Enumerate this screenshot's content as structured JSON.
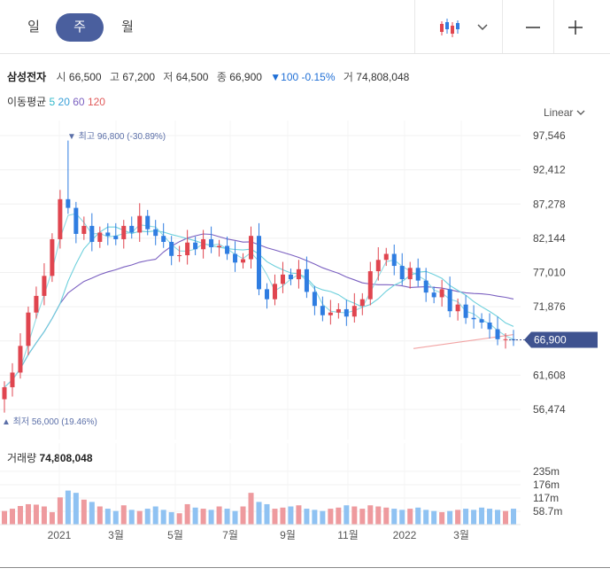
{
  "toolbar": {
    "periods": [
      "일",
      "주",
      "월"
    ],
    "active_period": "주",
    "chart_type_icon": "candlestick-icon",
    "dropdown_icon": "chevron-down-icon",
    "zoom_out_icon": "minus-icon",
    "zoom_in_icon": "plus-icon"
  },
  "quote": {
    "name": "삼성전자",
    "open_label": "시",
    "open": "66,500",
    "high_label": "고",
    "high": "67,200",
    "low_label": "저",
    "low": "64,500",
    "close_label": "종",
    "close": "66,900",
    "change": "▼100 -0.15%",
    "volume_label": "거",
    "volume": "74,808,048"
  },
  "moving_average": {
    "label": "이동평균",
    "periods": [
      {
        "value": "5",
        "color": "#30b8c9"
      },
      {
        "value": "20",
        "color": "#3aa0d8"
      },
      {
        "value": "60",
        "color": "#7a5fc0"
      },
      {
        "value": "120",
        "color": "#e05a5a"
      }
    ]
  },
  "scale_mode": "Linear",
  "colors": {
    "up": "#e0454f",
    "down": "#2f7de1",
    "vol_up": "#ee9a9e",
    "vol_down": "#8fc2f2",
    "badge": "#3f5390"
  },
  "chart_data": {
    "type": "candlestick",
    "y_ticks": [
      "97,546",
      "92,412",
      "87,278",
      "82,144",
      "77,010",
      "71,876",
      "66,742",
      "61,608",
      "56,474"
    ],
    "y_tick_values": [
      97546,
      92412,
      87278,
      82144,
      77010,
      71876,
      66742,
      61608,
      56474
    ],
    "ylim": [
      54500,
      100000
    ],
    "x_labels": [
      "2021",
      "3월",
      "5월",
      "7월",
      "9월",
      "11월",
      "2022",
      "3월"
    ],
    "current_price": "66,900",
    "high_marker": "최고 96,800 (-30.89%)",
    "low_marker": "최저 56,000 (19.46%)",
    "close": [
      59800,
      62000,
      66000,
      71000,
      73500,
      76500,
      82000,
      88000,
      86700,
      82800,
      84000,
      81600,
      83000,
      82500,
      82000,
      84000,
      83000,
      85500,
      83500,
      82500,
      81600,
      79500,
      79600,
      81500,
      80500,
      82000,
      80800,
      81000,
      79800,
      78500,
      79000,
      82500,
      74500,
      73000,
      75300,
      76700,
      76000,
      77500,
      74100,
      72000,
      70600,
      71000,
      71500,
      70400,
      72000,
      73000,
      77200,
      78900,
      79800,
      78000,
      76000,
      77700,
      75800,
      74000,
      73300,
      74500,
      71200,
      72200,
      70200,
      70000,
      69500,
      68500,
      67000,
      67000,
      66900
    ],
    "volume_labels": [
      "235m",
      "176m",
      "117m",
      "58.7m"
    ],
    "volume_max": 250,
    "volume": [
      60,
      70,
      82,
      90,
      88,
      80,
      55,
      120,
      150,
      140,
      110,
      100,
      80,
      70,
      60,
      85,
      65,
      60,
      70,
      80,
      65,
      55,
      50,
      90,
      75,
      70,
      65,
      80,
      70,
      60,
      80,
      140,
      100,
      90,
      70,
      75,
      80,
      85,
      70,
      65,
      60,
      70,
      75,
      85,
      80,
      70,
      85,
      80,
      75,
      70,
      65,
      70,
      75,
      65,
      60,
      55,
      60,
      65,
      70,
      65,
      75,
      70,
      65,
      60,
      70
    ],
    "volume_title": "거래량",
    "volume_value": "74,808,048"
  }
}
